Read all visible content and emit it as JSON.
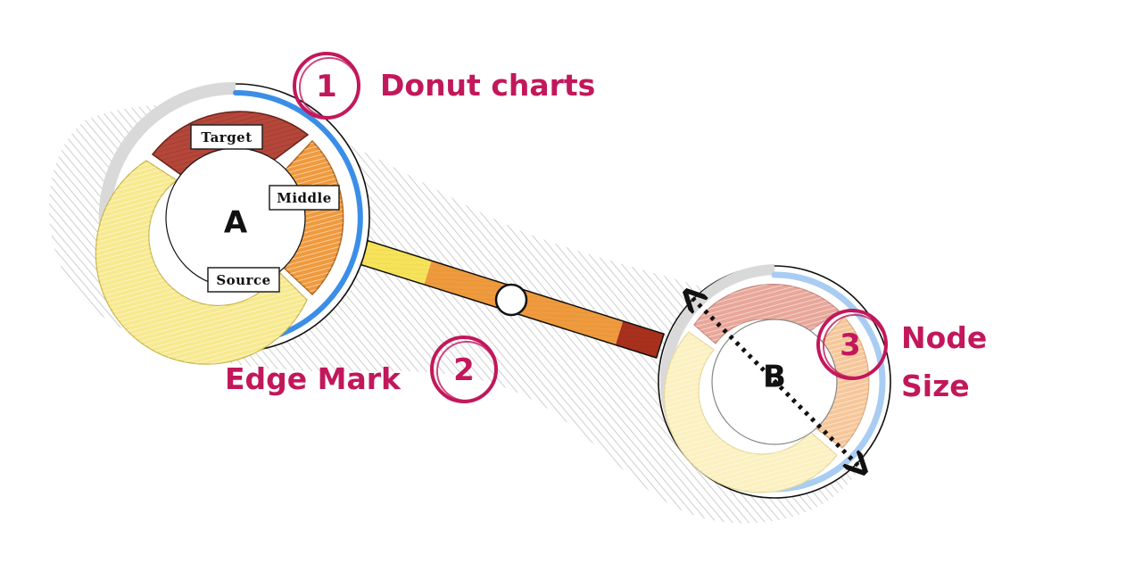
{
  "annotations": [
    {
      "number": "1",
      "label": "Donut charts"
    },
    {
      "number": "2",
      "label": "Edge Mark"
    },
    {
      "number": "3",
      "label": "Node",
      "label2": "Size"
    }
  ],
  "nodes": [
    {
      "name": "A",
      "segments": [
        {
          "label": "Target",
          "color": "#b5473a"
        },
        {
          "label": "Middle",
          "color": "#ef9a3d"
        },
        {
          "label": "Source",
          "color": "#f7e98e"
        }
      ]
    },
    {
      "name": "B",
      "segments": [
        {
          "label": "",
          "color": "#e8a79a"
        },
        {
          "label": "",
          "color": "#f6c79a"
        },
        {
          "label": "",
          "color": "#fbf0bf"
        }
      ]
    }
  ],
  "edge": {
    "colors": [
      "#f7e35a",
      "#ef9a3d",
      "#ef9a3d",
      "#a8301d"
    ]
  },
  "colors": {
    "annotation": "#c2185b",
    "ring_blue": "#3b8ee8",
    "ring_gray": "#d9d9d9"
  }
}
